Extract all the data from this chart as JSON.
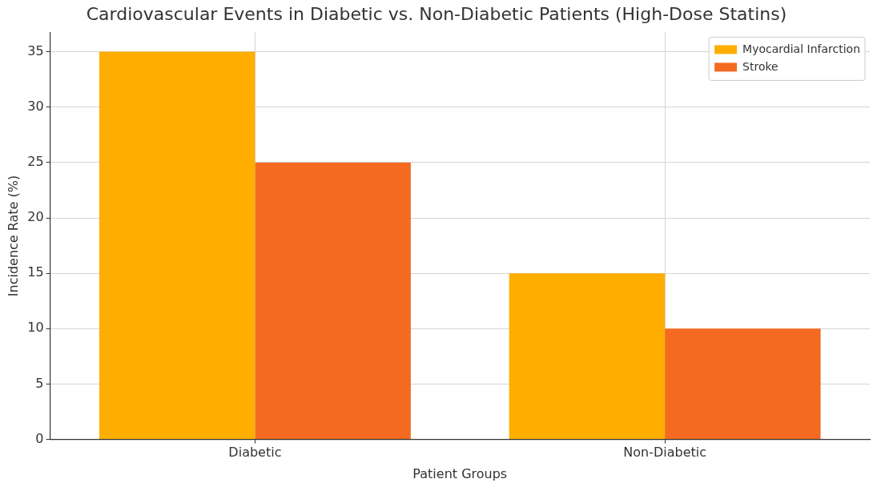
{
  "chart_data": {
    "type": "bar",
    "title": "Cardiovascular Events in Diabetic vs. Non-Diabetic Patients (High-Dose Statins)",
    "xlabel": "Patient Groups",
    "ylabel": "Incidence Rate (%)",
    "categories": [
      "Diabetic",
      "Non-Diabetic"
    ],
    "series": [
      {
        "name": "Myocardial Infarction",
        "color": "#ffae00",
        "values": [
          35,
          15
        ]
      },
      {
        "name": "Stroke",
        "color": "#f46a21",
        "values": [
          25,
          10
        ]
      }
    ],
    "ylim": [
      0,
      36.75
    ],
    "yticks": [
      0,
      5,
      10,
      15,
      20,
      25,
      30,
      35
    ],
    "grid": true,
    "legend": "top right"
  }
}
